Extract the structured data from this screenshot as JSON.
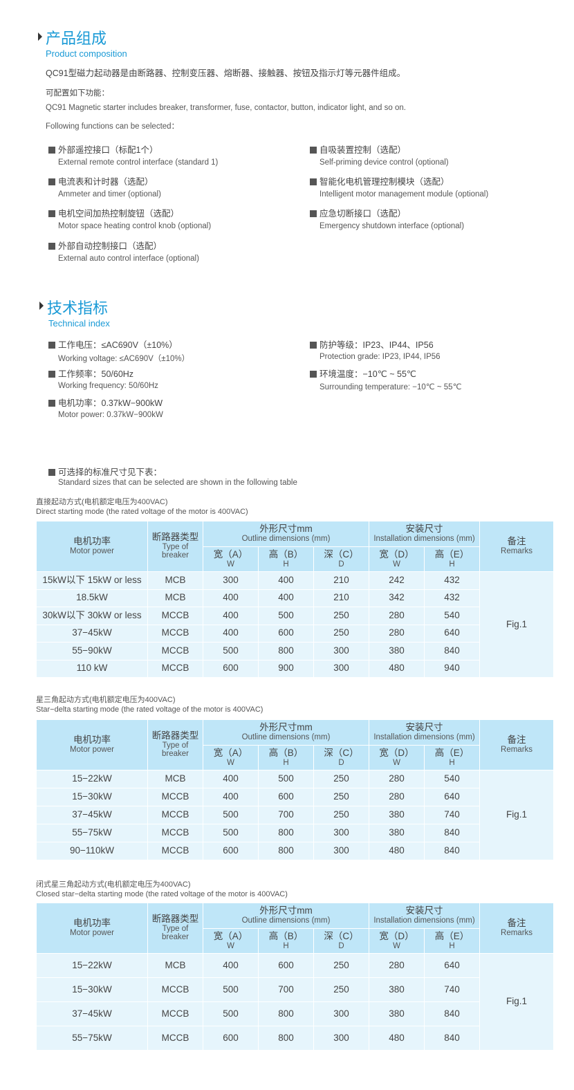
{
  "composition": {
    "title": "产品组成",
    "subtitle": "Product composition",
    "lines": [
      "QC91型磁力起动器是由断路器、控制变压器、熔断器、接触器、按钮及指示灯等元器件组成。",
      "可配置如下功能：",
      "QC91 Magnetic starter includes breaker, transformer, fuse, contactor, button, indicator light, and so on.",
      "Following functions can be selected："
    ],
    "features": [
      {
        "cn": "外部遥控接口（标配1个）",
        "en": "External remote control interface (standard 1)"
      },
      {
        "cn": "自吸装置控制（选配）",
        "en": "Self-priming device control (optional)"
      },
      {
        "cn": "电流表和计时器（选配）",
        "en": "Ammeter and timer (optional)"
      },
      {
        "cn": "智能化电机管理控制模块（选配）",
        "en": "Intelligent motor management module (optional)"
      },
      {
        "cn": "电机空间加热控制旋钮（选配）",
        "en": "Motor space heating control knob (optional)"
      },
      {
        "cn": "应急切断接口（选配）",
        "en": "Emergency shutdown interface (optional)"
      },
      {
        "cn": "外部自动控制接口（选配）",
        "en": "External auto control interface (optional)"
      }
    ]
  },
  "technical": {
    "title": "技术指标",
    "subtitle": "Technical index",
    "items": [
      {
        "cn": "工作电压：≤AC690V（±10%）",
        "en": "Working voltage: ≤AC690V（±10%）"
      },
      {
        "cn": "防护等级：IP23、IP44、IP56",
        "en": "Protection grade: IP23, IP44, IP56"
      },
      {
        "cn": "工作频率：50/60Hz",
        "en": "Working frequency: 50/60Hz"
      },
      {
        "cn": "环境温度：−10℃ ~ 55℃",
        "en": "Surrounding temperature: −10℃ ~ 55℃"
      },
      {
        "cn": "电机功率：0.37kW−900kW",
        "en": "Motor power: 0.37kW−900kW"
      }
    ],
    "sizes_cn": "可选择的标准尺寸见下表：",
    "sizes_en": "Standard sizes that can be selected are shown in the following table"
  },
  "header": {
    "motor_cn": "电机功率",
    "motor_en": "Motor power",
    "breaker_cn": "断路器类型",
    "breaker_en1": "Type of",
    "breaker_en2": "breaker",
    "outline_cn": "外形尺寸mm",
    "outline_en": "Outline dimensions (mm)",
    "install_cn": "安装尺寸",
    "install_en": "Installation dimensions (mm)",
    "remarks_cn": "备注",
    "remarks_en": "Remarks",
    "a": "宽（A）",
    "a_en": "W",
    "b": "高（B）",
    "b_en": "H",
    "c": "深（C）",
    "c_en": "D",
    "d": "宽（D）",
    "d_en": "W",
    "e": "高（E）",
    "e_en": "H"
  },
  "tables": [
    {
      "cap_cn": "直接起动方式(电机额定电压为400VAC)",
      "cap_en": "Direct starting mode (the rated voltage of the motor is 400VAC)",
      "remark": "Fig.1",
      "rows": [
        [
          "15kW以下 15kW or less",
          "MCB",
          "300",
          "400",
          "210",
          "242",
          "432"
        ],
        [
          "18.5kW",
          "MCB",
          "400",
          "400",
          "210",
          "342",
          "432"
        ],
        [
          "30kW以下 30kW or less",
          "MCCB",
          "400",
          "500",
          "250",
          "280",
          "540"
        ],
        [
          "37−45kW",
          "MCCB",
          "400",
          "600",
          "250",
          "280",
          "640"
        ],
        [
          "55−90kW",
          "MCCB",
          "500",
          "800",
          "300",
          "380",
          "840"
        ],
        [
          "110 kW",
          "MCCB",
          "600",
          "900",
          "300",
          "480",
          "940"
        ]
      ]
    },
    {
      "cap_cn": "星三角起动方式(电机额定电压为400VAC)",
      "cap_en": "Star−delta starting mode (the rated voltage of the motor is 400VAC)",
      "remark": "Fig.1",
      "rows": [
        [
          "15−22kW",
          "MCB",
          "400",
          "500",
          "250",
          "280",
          "540"
        ],
        [
          "15−30kW",
          "MCCB",
          "400",
          "600",
          "250",
          "280",
          "640"
        ],
        [
          "37−45kW",
          "MCCB",
          "500",
          "700",
          "250",
          "380",
          "740"
        ],
        [
          "55−75kW",
          "MCCB",
          "500",
          "800",
          "300",
          "380",
          "840"
        ],
        [
          "90−110kW",
          "MCCB",
          "600",
          "800",
          "300",
          "480",
          "840"
        ]
      ]
    },
    {
      "cap_cn": "闭式星三角起动方式(电机额定电压为400VAC)",
      "cap_en": "Closed star−delta starting mode (the rated voltage of the motor is 400VAC)",
      "remark": "Fig.1",
      "rows": [
        [
          "15−22kW",
          "MCB",
          "400",
          "600",
          "250",
          "280",
          "640"
        ],
        [
          "15−30kW",
          "MCCB",
          "500",
          "700",
          "250",
          "380",
          "740"
        ],
        [
          "37−45kW",
          "MCCB",
          "500",
          "800",
          "300",
          "380",
          "840"
        ],
        [
          "55−75kW",
          "MCCB",
          "600",
          "800",
          "300",
          "480",
          "840"
        ]
      ]
    }
  ]
}
